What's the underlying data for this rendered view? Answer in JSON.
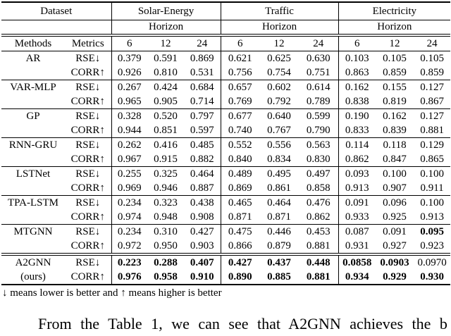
{
  "table": {
    "header": {
      "dataset_label": "Dataset",
      "methods_label": "Methods",
      "metrics_label": "Metrics",
      "horizon_label": "Horizon",
      "groups": [
        "Solar-Energy",
        "Traffic",
        "Electricity"
      ],
      "horizons": [
        "6",
        "12",
        "24"
      ]
    },
    "rows": [
      {
        "method": "AR",
        "method2": "",
        "separator": "single",
        "metrics": [
          {
            "name": "RSE↓",
            "values": [
              "0.379",
              "0.591",
              "0.869",
              "0.621",
              "0.625",
              "0.630",
              "0.103",
              "0.105",
              "0.105"
            ],
            "bold": [
              0,
              0,
              0,
              0,
              0,
              0,
              0,
              0,
              0
            ]
          },
          {
            "name": "CORR↑",
            "values": [
              "0.926",
              "0.810",
              "0.531",
              "0.756",
              "0.754",
              "0.751",
              "0.863",
              "0.859",
              "0.859"
            ],
            "bold": [
              0,
              0,
              0,
              0,
              0,
              0,
              0,
              0,
              0
            ]
          }
        ]
      },
      {
        "method": "VAR-MLP",
        "method2": "",
        "separator": "single",
        "metrics": [
          {
            "name": "RSE↓",
            "values": [
              "0.267",
              "0.424",
              "0.684",
              "0.657",
              "0.602",
              "0.614",
              "0.162",
              "0.155",
              "0.127"
            ],
            "bold": [
              0,
              0,
              0,
              0,
              0,
              0,
              0,
              0,
              0
            ]
          },
          {
            "name": "CORR↑",
            "values": [
              "0.965",
              "0.905",
              "0.714",
              "0.769",
              "0.792",
              "0.789",
              "0.838",
              "0.819",
              "0.867"
            ],
            "bold": [
              0,
              0,
              0,
              0,
              0,
              0,
              0,
              0,
              0
            ]
          }
        ]
      },
      {
        "method": "GP",
        "method2": "",
        "separator": "single",
        "metrics": [
          {
            "name": "RSE↓",
            "values": [
              "0.328",
              "0.520",
              "0.797",
              "0.677",
              "0.640",
              "0.599",
              "0.190",
              "0.162",
              "0.127"
            ],
            "bold": [
              0,
              0,
              0,
              0,
              0,
              0,
              0,
              0,
              0
            ]
          },
          {
            "name": "CORR↑",
            "values": [
              "0.944",
              "0.851",
              "0.597",
              "0.740",
              "0.767",
              "0.790",
              "0.833",
              "0.839",
              "0.881"
            ],
            "bold": [
              0,
              0,
              0,
              0,
              0,
              0,
              0,
              0,
              0
            ]
          }
        ]
      },
      {
        "method": "RNN-GRU",
        "method2": "",
        "separator": "single",
        "metrics": [
          {
            "name": "RSE↓",
            "values": [
              "0.262",
              "0.416",
              "0.485",
              "0.552",
              "0.556",
              "0.563",
              "0.114",
              "0.118",
              "0.129"
            ],
            "bold": [
              0,
              0,
              0,
              0,
              0,
              0,
              0,
              0,
              0
            ]
          },
          {
            "name": "CORR↑",
            "values": [
              "0.967",
              "0.915",
              "0.882",
              "0.840",
              "0.834",
              "0.830",
              "0.862",
              "0.847",
              "0.865"
            ],
            "bold": [
              0,
              0,
              0,
              0,
              0,
              0,
              0,
              0,
              0
            ]
          }
        ]
      },
      {
        "method": "LSTNet",
        "method2": "",
        "separator": "single",
        "metrics": [
          {
            "name": "RSE↓",
            "values": [
              "0.255",
              "0.325",
              "0.464",
              "0.489",
              "0.495",
              "0.497",
              "0.093",
              "0.100",
              "0.100"
            ],
            "bold": [
              0,
              0,
              0,
              0,
              0,
              0,
              0,
              0,
              0
            ]
          },
          {
            "name": "CORR↑",
            "values": [
              "0.969",
              "0.946",
              "0.887",
              "0.869",
              "0.861",
              "0.858",
              "0.913",
              "0.907",
              "0.911"
            ],
            "bold": [
              0,
              0,
              0,
              0,
              0,
              0,
              0,
              0,
              0
            ]
          }
        ]
      },
      {
        "method": "TPA-LSTM",
        "method2": "",
        "separator": "single",
        "metrics": [
          {
            "name": "RSE↓",
            "values": [
              "0.234",
              "0.323",
              "0.438",
              "0.465",
              "0.464",
              "0.476",
              "0.091",
              "0.096",
              "0.100"
            ],
            "bold": [
              0,
              0,
              0,
              0,
              0,
              0,
              0,
              0,
              0
            ]
          },
          {
            "name": "CORR↑",
            "values": [
              "0.974",
              "0.948",
              "0.908",
              "0.871",
              "0.871",
              "0.862",
              "0.933",
              "0.925",
              "0.913"
            ],
            "bold": [
              0,
              0,
              0,
              0,
              0,
              0,
              0,
              0,
              0
            ]
          }
        ]
      },
      {
        "method": "MTGNN",
        "method2": "",
        "separator": "single",
        "metrics": [
          {
            "name": "RSE↓",
            "values": [
              "0.234",
              "0.310",
              "0.427",
              "0.475",
              "0.446",
              "0.453",
              "0.087",
              "0.091",
              "0.095"
            ],
            "bold": [
              0,
              0,
              0,
              0,
              0,
              0,
              0,
              0,
              1
            ]
          },
          {
            "name": "CORR↑",
            "values": [
              "0.972",
              "0.950",
              "0.903",
              "0.866",
              "0.879",
              "0.881",
              "0.931",
              "0.927",
              "0.923"
            ],
            "bold": [
              0,
              0,
              0,
              0,
              0,
              0,
              0,
              0,
              0
            ]
          }
        ]
      },
      {
        "method": "A2GNN",
        "method2": "(ours)",
        "separator": "double",
        "metrics": [
          {
            "name": "RSE↓",
            "values": [
              "0.223",
              "0.288",
              "0.407",
              "0.427",
              "0.437",
              "0.448",
              "0.0858",
              "0.0903",
              "0.0970"
            ],
            "bold": [
              1,
              1,
              1,
              1,
              1,
              1,
              1,
              1,
              0
            ]
          },
          {
            "name": "CORR↑",
            "values": [
              "0.976",
              "0.958",
              "0.910",
              "0.890",
              "0.885",
              "0.881",
              "0.934",
              "0.929",
              "0.930"
            ],
            "bold": [
              1,
              1,
              1,
              1,
              1,
              1,
              1,
              1,
              1
            ]
          }
        ]
      }
    ],
    "footnote": "↓ means lower is better and ↑ means higher is better"
  },
  "caption_partial": "From the Table 1, we can see that A2GNN achieves the b"
}
